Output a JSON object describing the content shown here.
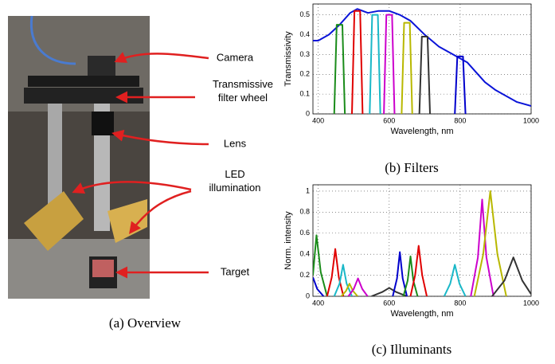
{
  "photo_panel": {
    "caption": "(a) Overview",
    "labels": [
      {
        "lines": [
          "Camera"
        ]
      },
      {
        "lines": [
          "Transmissive",
          "filter wheel"
        ]
      },
      {
        "lines": [
          "Lens"
        ]
      },
      {
        "lines": [
          "LED",
          "illumination"
        ]
      },
      {
        "lines": [
          "Target"
        ]
      }
    ]
  },
  "chart_data": [
    {
      "type": "line",
      "caption": "(b) Filters",
      "x_label": "Wavelength, nm",
      "y_label": "Transmissivity",
      "xlim": [
        385,
        1000
      ],
      "ylim": [
        0,
        0.555
      ],
      "xticks": [
        400,
        600,
        800,
        1000
      ],
      "yticks": [
        0,
        0.1,
        0.2,
        0.3,
        0.4,
        0.5
      ],
      "grid": true,
      "series": [
        {
          "color": "#0a14d8",
          "x": [
            385,
            400,
            430,
            460,
            490,
            510,
            540,
            570,
            600,
            630,
            660,
            700,
            740,
            780,
            820,
            840,
            870,
            900,
            930,
            960,
            1000
          ],
          "values": [
            0.37,
            0.37,
            0.4,
            0.45,
            0.51,
            0.53,
            0.51,
            0.52,
            0.52,
            0.5,
            0.47,
            0.4,
            0.34,
            0.3,
            0.26,
            0.22,
            0.16,
            0.12,
            0.09,
            0.06,
            0.04
          ]
        },
        {
          "color": "#1a8c1a",
          "x": [
            445,
            452,
            468,
            475
          ],
          "values": [
            0,
            0.45,
            0.45,
            0
          ]
        },
        {
          "color": "#e00000",
          "x": [
            495,
            502,
            518,
            525
          ],
          "values": [
            0,
            0.52,
            0.52,
            0
          ]
        },
        {
          "color": "#1ab8c8",
          "x": [
            545,
            552,
            568,
            575
          ],
          "values": [
            0,
            0.5,
            0.5,
            0
          ]
        },
        {
          "color": "#cc00cc",
          "x": [
            585,
            592,
            608,
            615
          ],
          "values": [
            0,
            0.5,
            0.5,
            0
          ]
        },
        {
          "color": "#b8b800",
          "x": [
            635,
            642,
            658,
            665
          ],
          "values": [
            0,
            0.46,
            0.46,
            0
          ]
        },
        {
          "color": "#333333",
          "x": [
            685,
            692,
            708,
            715
          ],
          "values": [
            0,
            0.39,
            0.39,
            0
          ]
        },
        {
          "color": "#0000cc",
          "x": [
            785,
            792,
            808,
            815
          ],
          "values": [
            0,
            0.29,
            0.29,
            0
          ]
        }
      ]
    },
    {
      "type": "line",
      "caption": "(c) Illuminants",
      "x_label": "Wavelength, nm",
      "y_label": "Norm. intensity",
      "xlim": [
        385,
        1000
      ],
      "ylim": [
        0,
        1.06
      ],
      "xticks": [
        400,
        600,
        800,
        1000
      ],
      "yticks": [
        0,
        0.2,
        0.4,
        0.6,
        0.8,
        1
      ],
      "grid": true,
      "series": [
        {
          "color": "#0000cc",
          "x": [
            385,
            397,
            415
          ],
          "values": [
            0.18,
            0.07,
            0
          ]
        },
        {
          "color": "#1a8c1a",
          "x": [
            385,
            395,
            407,
            425
          ],
          "values": [
            0.2,
            0.58,
            0.23,
            0
          ]
        },
        {
          "color": "#e00000",
          "x": [
            425,
            438,
            448,
            458,
            471
          ],
          "values": [
            0,
            0.18,
            0.45,
            0.18,
            0
          ]
        },
        {
          "color": "#1ab8c8",
          "x": [
            445,
            460,
            470,
            480,
            495
          ],
          "values": [
            0,
            0.12,
            0.3,
            0.12,
            0
          ]
        },
        {
          "color": "#b8b800",
          "x": [
            465,
            478,
            488,
            498,
            511
          ],
          "values": [
            0,
            0.05,
            0.12,
            0.05,
            0
          ]
        },
        {
          "color": "#cc00cc",
          "x": [
            485,
            500,
            512,
            524,
            539
          ],
          "values": [
            0,
            0.07,
            0.17,
            0.07,
            0
          ]
        },
        {
          "color": "#333333",
          "x": [
            550,
            580,
            600,
            620,
            650
          ],
          "values": [
            0,
            0.04,
            0.08,
            0.04,
            0
          ]
        },
        {
          "color": "#0000cc",
          "x": [
            610,
            622,
            630,
            638,
            650
          ],
          "values": [
            0,
            0.17,
            0.42,
            0.17,
            0
          ]
        },
        {
          "color": "#1a8c1a",
          "x": [
            640,
            652,
            660,
            668,
            680
          ],
          "values": [
            0,
            0.15,
            0.38,
            0.15,
            0
          ]
        },
        {
          "color": "#e00000",
          "x": [
            660,
            673,
            683,
            693,
            706
          ],
          "values": [
            0,
            0.2,
            0.48,
            0.2,
            0
          ]
        },
        {
          "color": "#1ab8c8",
          "x": [
            755,
            772,
            785,
            798,
            815
          ],
          "values": [
            0,
            0.12,
            0.3,
            0.12,
            0
          ]
        },
        {
          "color": "#cc00cc",
          "x": [
            830,
            850,
            862,
            874,
            894
          ],
          "values": [
            0,
            0.37,
            0.92,
            0.37,
            0
          ]
        },
        {
          "color": "#b8b800",
          "x": [
            840,
            865,
            885,
            905,
            930
          ],
          "values": [
            0,
            0.4,
            1.0,
            0.4,
            0
          ]
        },
        {
          "color": "#333333",
          "x": [
            890,
            925,
            950,
            975,
            1000
          ],
          "values": [
            0,
            0.15,
            0.37,
            0.15,
            0.02
          ]
        }
      ]
    }
  ]
}
